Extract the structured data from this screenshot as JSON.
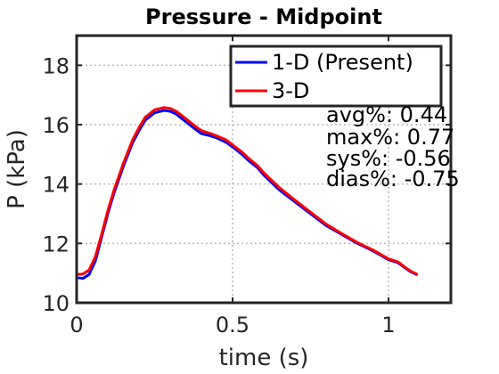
{
  "chart_data": {
    "type": "line",
    "title": "Pressure - Midpoint",
    "xlabel": "time (s)",
    "ylabel": "P (kPa)",
    "xlim": [
      0,
      1.2
    ],
    "ylim": [
      10,
      19
    ],
    "xticks": [
      0,
      0.5,
      1
    ],
    "xtick_labels": [
      "0",
      "0.5",
      "1"
    ],
    "yticks": [
      10,
      12,
      14,
      16,
      18
    ],
    "ytick_labels": [
      "10",
      "12",
      "14",
      "16",
      "18"
    ],
    "grid": true,
    "grid_style": "dotted",
    "legend_position": "top-right",
    "series": [
      {
        "name": "1-D (Present)",
        "color": "#0000ff",
        "x": [
          0.0,
          0.02,
          0.04,
          0.06,
          0.08,
          0.1,
          0.12,
          0.15,
          0.18,
          0.2,
          0.22,
          0.25,
          0.28,
          0.3,
          0.32,
          0.35,
          0.38,
          0.4,
          0.43,
          0.45,
          0.48,
          0.5,
          0.53,
          0.55,
          0.58,
          0.6,
          0.65,
          0.7,
          0.75,
          0.8,
          0.85,
          0.9,
          0.95,
          1.0,
          1.03,
          1.05,
          1.07,
          1.09
        ],
        "y": [
          10.85,
          10.82,
          10.95,
          11.4,
          12.2,
          13.0,
          13.7,
          14.6,
          15.4,
          15.8,
          16.15,
          16.4,
          16.48,
          16.45,
          16.35,
          16.1,
          15.85,
          15.7,
          15.62,
          15.55,
          15.4,
          15.25,
          15.0,
          14.8,
          14.55,
          14.3,
          13.8,
          13.4,
          13.0,
          12.6,
          12.3,
          12.0,
          11.75,
          11.45,
          11.35,
          11.2,
          11.05,
          10.95
        ]
      },
      {
        "name": "3-D",
        "color": "#ff0000",
        "x": [
          0.0,
          0.02,
          0.04,
          0.06,
          0.08,
          0.1,
          0.12,
          0.15,
          0.18,
          0.2,
          0.22,
          0.25,
          0.28,
          0.3,
          0.32,
          0.35,
          0.38,
          0.4,
          0.43,
          0.45,
          0.48,
          0.5,
          0.53,
          0.55,
          0.58,
          0.6,
          0.65,
          0.7,
          0.75,
          0.8,
          0.85,
          0.9,
          0.95,
          1.0,
          1.03,
          1.05,
          1.07,
          1.09
        ],
        "y": [
          10.95,
          10.97,
          11.1,
          11.55,
          12.3,
          13.1,
          13.8,
          14.7,
          15.5,
          15.9,
          16.25,
          16.5,
          16.58,
          16.55,
          16.45,
          16.2,
          15.95,
          15.8,
          15.7,
          15.62,
          15.48,
          15.32,
          15.08,
          14.88,
          14.62,
          14.38,
          13.88,
          13.46,
          13.05,
          12.65,
          12.33,
          12.03,
          11.78,
          11.48,
          11.38,
          11.22,
          11.07,
          10.97
        ]
      }
    ],
    "annotations": [
      "avg%: 0.44",
      "max%: 0.77",
      "sys%: -0.56",
      "dias%: -0.75"
    ]
  }
}
